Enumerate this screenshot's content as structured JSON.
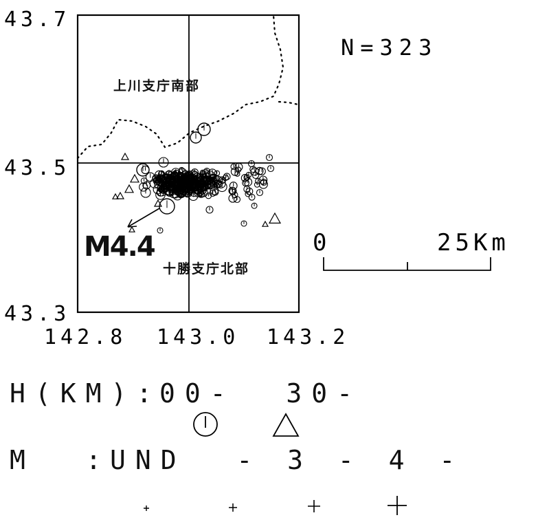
{
  "map": {
    "lat_top": "43.7",
    "lat_mid": "43.5",
    "lat_bottom": "43.3",
    "lon_ticks": [
      "142.8",
      "143.0",
      "143.2"
    ],
    "count_label": "N=323",
    "region_north": "上川支庁南部",
    "region_south": "十勝支庁北部",
    "magnitude_annotation": "M4.4"
  },
  "scale_bar": {
    "start_label": "0",
    "end_label": "25Km"
  },
  "legend": {
    "depth_label": "H(KM):",
    "depth_values": "00-  30-",
    "magnitude_label": "M  :",
    "magnitude_values": "UND  - 3 - 4 -"
  },
  "data": {
    "lon_range": [
      142.8,
      143.2
    ],
    "lat_range": [
      43.3,
      43.7
    ],
    "event_count": 323
  }
}
